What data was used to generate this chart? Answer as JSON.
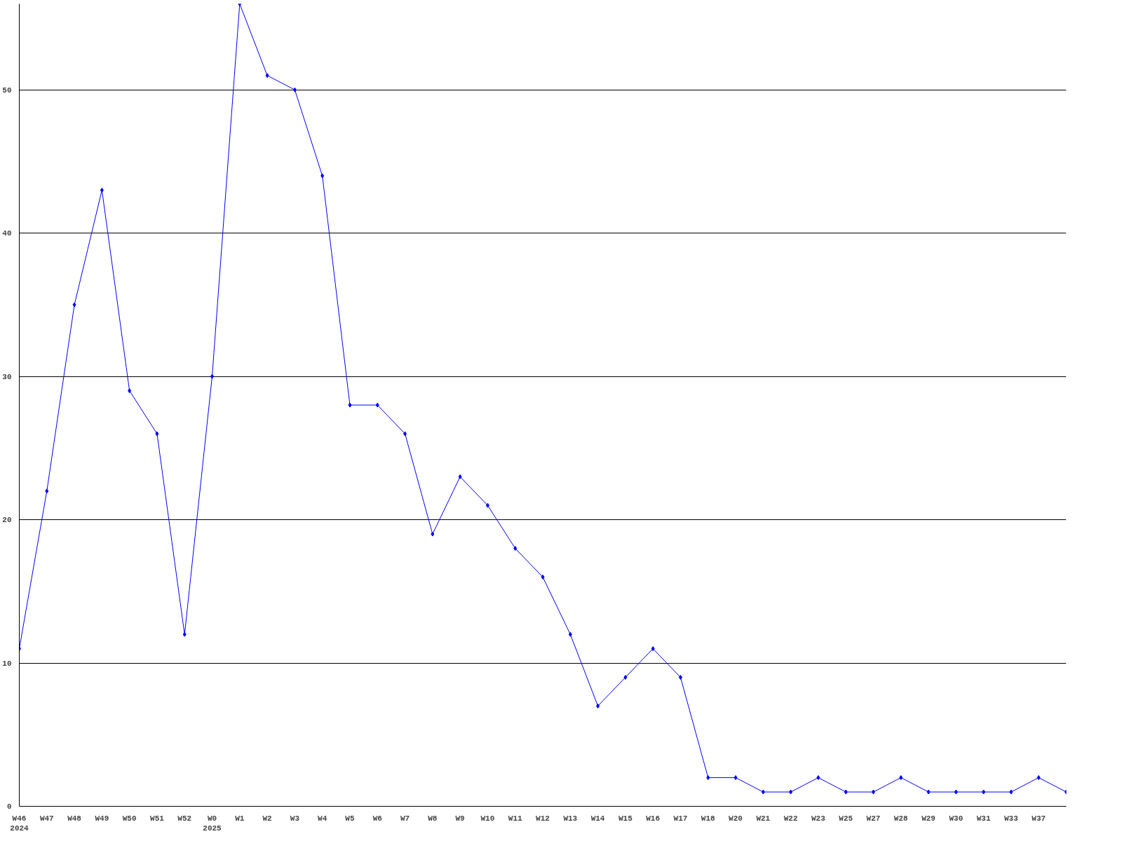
{
  "chart_data": {
    "type": "line",
    "categories": [
      "W46\n2024",
      "W47",
      "W48",
      "W49",
      "W50",
      "W51",
      "W52",
      "W0\n2025",
      "W1",
      "W2",
      "W3",
      "W4",
      "W5",
      "W6",
      "W7",
      "W8",
      "W9",
      "W10",
      "W11",
      "W12",
      "W13",
      "W14",
      "W15",
      "W16",
      "W17",
      "W18",
      "W20",
      "W21",
      "W22",
      "W23",
      "W25",
      "W27",
      "W28",
      "W29",
      "W30",
      "W31",
      "W33",
      "W37",
      null
    ],
    "series": [
      {
        "color": "#0000ff",
        "values": [
          11,
          22,
          35,
          43,
          29,
          26,
          12,
          30,
          56,
          51,
          50,
          44,
          28,
          28,
          26,
          19,
          23,
          21,
          18,
          16,
          12,
          7,
          9,
          11,
          9,
          2,
          2,
          1,
          1,
          2,
          1,
          1,
          2,
          1,
          1,
          1,
          1,
          2,
          1
        ]
      }
    ],
    "ylim": [
      0,
      56
    ],
    "yticks": [
      0,
      10,
      20,
      30,
      40,
      50
    ],
    "grid": "y",
    "marker": "diamond",
    "line_style": "solid"
  }
}
